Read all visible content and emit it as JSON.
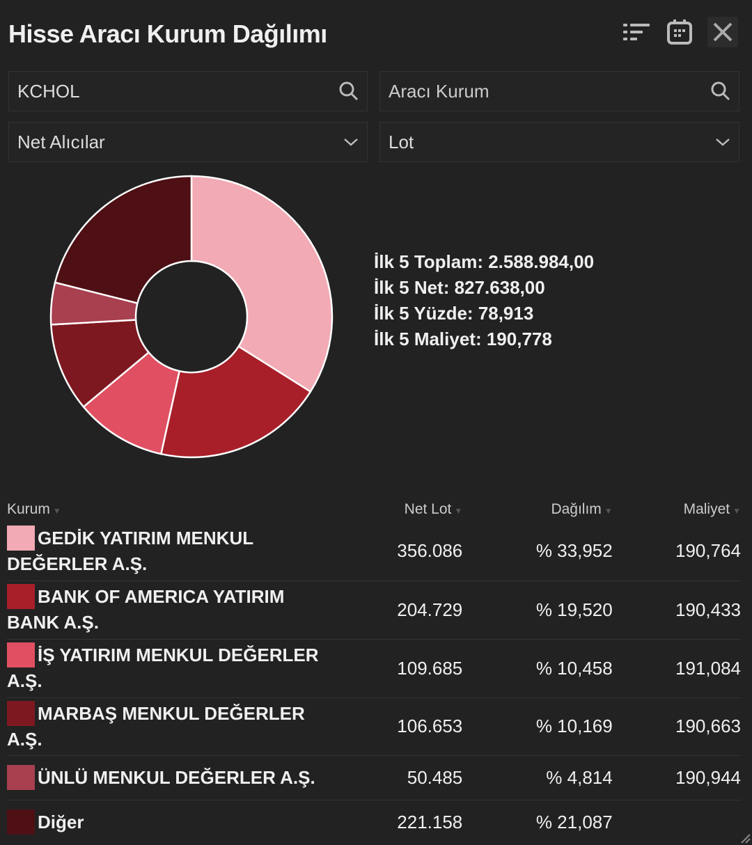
{
  "header": {
    "title": "Hisse Aracı Kurum Dağılımı",
    "icons": [
      "sort-list-icon",
      "calendar-icon",
      "close-icon"
    ]
  },
  "filters": {
    "symbol": "KCHOL",
    "broker_placeholder": "Aracı Kurum",
    "side": "Net Alıcılar",
    "unit": "Lot"
  },
  "stats": [
    "İlk 5 Toplam: 2.588.984,00",
    "İlk 5 Net: 827.638,00",
    "İlk 5 Yüzde: 78,913",
    "İlk 5 Maliyet: 190,778"
  ],
  "table": {
    "headers": [
      "Kurum",
      "Net Lot",
      "Dağılım",
      "Maliyet"
    ],
    "rows": [
      {
        "name": "GEDİK YATIRIM MENKUL DEĞERLER A.Ş.",
        "lot": "356.086",
        "pct": "% 33,952",
        "cost": "190,764",
        "color": "#f2aab4"
      },
      {
        "name": "BANK OF AMERICA YATIRIM BANK A.Ş.",
        "lot": "204.729",
        "pct": "% 19,520",
        "cost": "190,433",
        "color": "#a81f2a"
      },
      {
        "name": "İŞ YATIRIM MENKUL DEĞERLER A.Ş.",
        "lot": "109.685",
        "pct": "% 10,458",
        "cost": "191,084",
        "color": "#e05062"
      },
      {
        "name": "MARBAŞ MENKUL DEĞERLER A.Ş.",
        "lot": "106.653",
        "pct": "% 10,169",
        "cost": "190,663",
        "color": "#7e1820"
      },
      {
        "name": "ÜNLÜ MENKUL DEĞERLER A.Ş.",
        "lot": "50.485",
        "pct": "% 4,814",
        "cost": "190,944",
        "color": "#a8404f"
      },
      {
        "name": "Diğer",
        "lot": "221.158",
        "pct": "% 21,087",
        "cost": "",
        "color": "#4e1015"
      }
    ]
  },
  "chart_data": {
    "type": "pie",
    "donut": true,
    "categories": [
      "GEDİK YATIRIM MENKUL DEĞERLER A.Ş.",
      "BANK OF AMERICA YATIRIM BANK A.Ş.",
      "İŞ YATIRIM MENKUL DEĞERLER A.Ş.",
      "MARBAŞ MENKUL DEĞERLER A.Ş.",
      "ÜNLÜ MENKUL DEĞERLER A.Ş.",
      "Diğer"
    ],
    "values": [
      33.952,
      19.52,
      10.458,
      10.169,
      4.814,
      21.087
    ],
    "colors": [
      "#f2aab4",
      "#a81f2a",
      "#e05062",
      "#7e1820",
      "#a8404f",
      "#4e1015"
    ]
  }
}
